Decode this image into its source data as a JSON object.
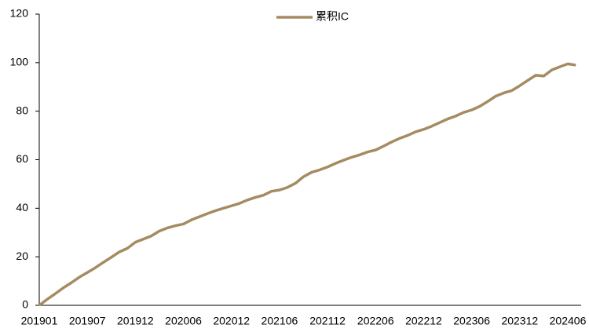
{
  "chart_data": {
    "type": "line",
    "categories": [
      "201901",
      null,
      null,
      null,
      null,
      null,
      "201907",
      null,
      null,
      null,
      null,
      null,
      "201912",
      null,
      null,
      null,
      null,
      null,
      "202006",
      null,
      null,
      null,
      null,
      null,
      "202012",
      null,
      null,
      null,
      null,
      null,
      "202106",
      null,
      null,
      null,
      null,
      null,
      "202112",
      null,
      null,
      null,
      null,
      null,
      "202206",
      null,
      null,
      null,
      null,
      null,
      "202212",
      null,
      null,
      null,
      null,
      null,
      "202306",
      null,
      null,
      null,
      null,
      null,
      "202312",
      null,
      null,
      null,
      null,
      null,
      "202406",
      null
    ],
    "series": [
      {
        "name": "累积IC",
        "color": "#a68b62",
        "values": [
          0,
          2.5,
          4.8,
          7.2,
          9.3,
          11.6,
          13.5,
          15.5,
          17.7,
          19.8,
          22.0,
          23.5,
          26.0,
          27.3,
          28.6,
          30.6,
          31.9,
          32.8,
          33.5,
          35.2,
          36.5,
          37.8,
          39.0,
          40.0,
          41.0,
          42.0,
          43.4,
          44.5,
          45.4,
          47.0,
          47.5,
          48.6,
          50.3,
          53.0,
          54.8,
          55.8,
          57.0,
          58.5,
          59.8,
          61.0,
          62.0,
          63.2,
          64.0,
          65.6,
          67.3,
          68.8,
          70.0,
          71.5,
          72.5,
          73.8,
          75.3,
          76.8,
          78.0,
          79.5,
          80.5,
          82.0,
          84.0,
          86.2,
          87.5,
          88.5,
          90.5,
          92.7,
          94.8,
          94.5,
          97.0,
          98.3,
          99.5,
          99.0
        ]
      }
    ],
    "ylim": [
      0,
      120
    ],
    "yticks": [
      0,
      20,
      40,
      60,
      80,
      100,
      120
    ],
    "grid": false,
    "legend": "top"
  }
}
